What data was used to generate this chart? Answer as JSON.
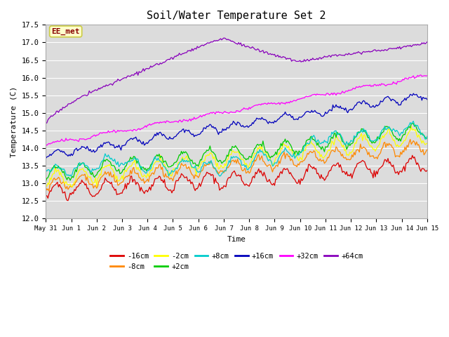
{
  "title": "Soil/Water Temperature Set 2",
  "xlabel": "Time",
  "ylabel": "Temperature (C)",
  "ylim": [
    12.0,
    17.5
  ],
  "plot_bg_color": "#dcdcdc",
  "fig_bg_color": "#ffffff",
  "annotation_text": "EE_met",
  "annotation_bg": "#ffffcc",
  "annotation_border": "#cccc44",
  "series_order": [
    "-16cm",
    "-8cm",
    "-2cm",
    "+2cm",
    "+8cm",
    "+16cm",
    "+32cm",
    "+64cm"
  ],
  "series": {
    "-16cm": {
      "color": "#dd0000",
      "start": 12.75,
      "end": 13.55,
      "amp": 0.2,
      "period": 24,
      "noise": 0.05
    },
    "-8cm": {
      "color": "#ff8800",
      "start": 12.95,
      "end": 14.05,
      "amp": 0.18,
      "period": 24,
      "noise": 0.05
    },
    "-2cm": {
      "color": "#ffff00",
      "start": 13.1,
      "end": 14.35,
      "amp": 0.22,
      "period": 24,
      "noise": 0.05
    },
    "+2cm": {
      "color": "#00cc00",
      "start": 13.25,
      "end": 14.55,
      "amp": 0.2,
      "period": 24,
      "noise": 0.04
    },
    "+8cm": {
      "color": "#00cccc",
      "start": 13.45,
      "end": 14.9,
      "amp": 0.15,
      "period": 24,
      "noise": 0.03
    },
    "+16cm": {
      "color": "#0000bb",
      "start": 13.8,
      "end": 15.55,
      "amp": 0.1,
      "period": 24,
      "noise": 0.03
    },
    "+32cm": {
      "color": "#ff00ff",
      "start": 14.1,
      "end": 16.05,
      "amp": 0.04,
      "period": 48,
      "noise": 0.02
    },
    "+64cm": {
      "color": "#8800bb",
      "start": 14.7,
      "end": 17.0,
      "amp": 0.03,
      "period": 120,
      "noise": 0.02
    }
  },
  "xtick_labels": [
    "May 31",
    "Jun 1",
    "Jun 2",
    "Jun 3",
    "Jun 4",
    "Jun 5",
    "Jun 6",
    "Jun 7",
    "Jun 8",
    "Jun 9",
    "Jun 10",
    "Jun 11",
    "Jun 12",
    "Jun 13",
    "Jun 14",
    "Jun 15"
  ],
  "xtick_positions": [
    0,
    24,
    48,
    72,
    96,
    120,
    144,
    168,
    192,
    216,
    240,
    264,
    288,
    312,
    336,
    360
  ],
  "ytick_positions": [
    12.0,
    12.5,
    13.0,
    13.5,
    14.0,
    14.5,
    15.0,
    15.5,
    16.0,
    16.5,
    17.0,
    17.5
  ],
  "n_hours": 361,
  "font": "monospace"
}
